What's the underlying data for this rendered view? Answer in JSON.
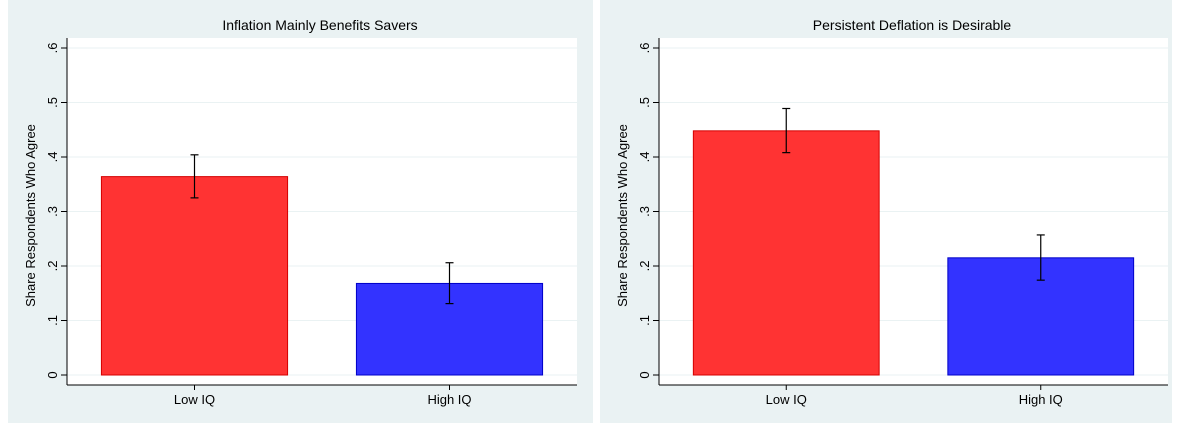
{
  "chart_data": [
    {
      "type": "bar",
      "title": "Inflation Mainly Benefits Savers",
      "xlabel": "",
      "ylabel": "Share Respondents Who Agree",
      "ylim": [
        0,
        0.6
      ],
      "yticks": [
        0,
        0.1,
        0.2,
        0.3,
        0.4,
        0.5,
        0.6
      ],
      "ytick_labels": [
        "0",
        ".1",
        ".2",
        ".3",
        ".4",
        ".5",
        ".6"
      ],
      "categories": [
        "Low IQ",
        "High IQ"
      ],
      "values": [
        0.364,
        0.168
      ],
      "ci_low": [
        0.325,
        0.131
      ],
      "ci_high": [
        0.404,
        0.206
      ],
      "colors": [
        "#ff3333",
        "#3333ff"
      ],
      "grid": true,
      "legend": "none"
    },
    {
      "type": "bar",
      "title": "Persistent Deflation is Desirable",
      "xlabel": "",
      "ylabel": "Share Respondents Who Agree",
      "ylim": [
        0,
        0.6
      ],
      "yticks": [
        0,
        0.1,
        0.2,
        0.3,
        0.4,
        0.5,
        0.6
      ],
      "ytick_labels": [
        "0",
        ".1",
        ".2",
        ".3",
        ".4",
        ".5",
        ".6"
      ],
      "categories": [
        "Low IQ",
        "High IQ"
      ],
      "values": [
        0.448,
        0.215
      ],
      "ci_low": [
        0.408,
        0.174
      ],
      "ci_high": [
        0.489,
        0.257
      ],
      "colors": [
        "#ff3333",
        "#3333ff"
      ],
      "grid": true,
      "legend": "none"
    }
  ],
  "style": {
    "outer_background": "#eaf2f3",
    "plot_background": "#ffffff",
    "gridline_color": "#eaf2f3",
    "bar_edge_colors": [
      "#d40000",
      "#0000c8"
    ]
  }
}
